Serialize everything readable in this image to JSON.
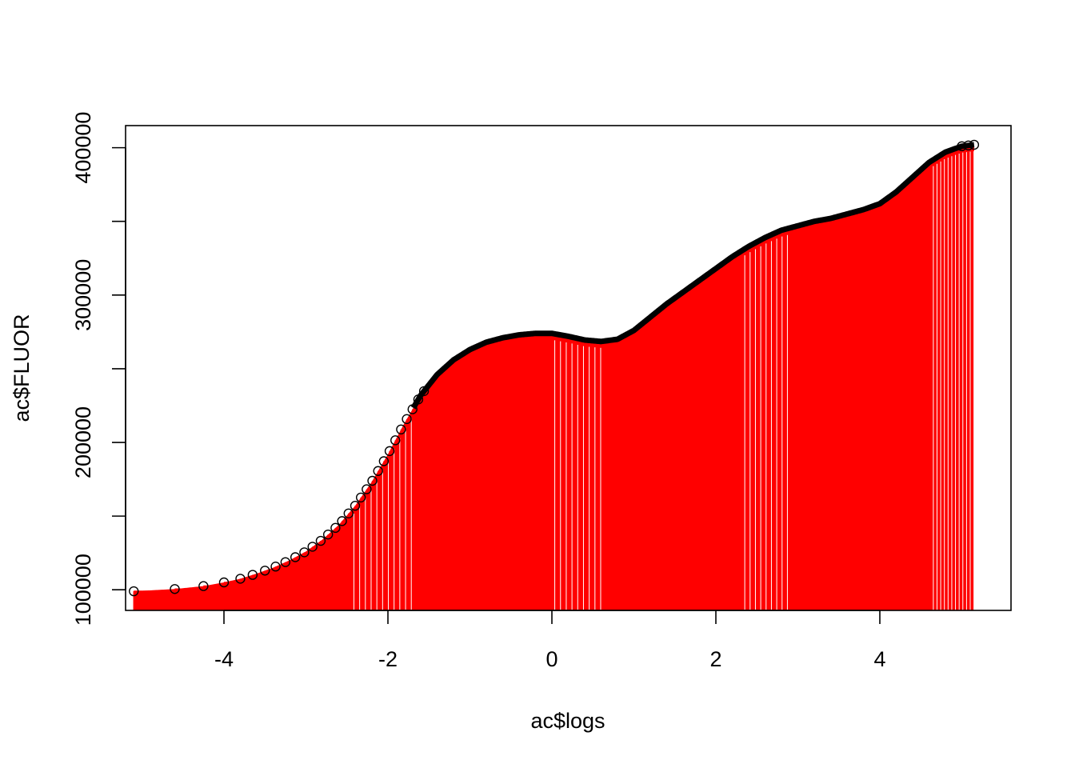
{
  "chart_data": {
    "type": "scatter",
    "style": "points with vertical drop lines (histogram-type) in red, circle markers in black",
    "title": "",
    "xlabel": "ac$logs",
    "ylabel": "ac$FLUOR",
    "xlim": [
      -5.2,
      5.6
    ],
    "ylim": [
      86000,
      415000
    ],
    "x_ticks": [
      -4,
      -2,
      0,
      2,
      4
    ],
    "x_tick_labels": [
      "-4",
      "-2",
      "0",
      "2",
      "4"
    ],
    "y_ticks": [
      100000,
      150000,
      200000,
      250000,
      300000,
      350000,
      400000
    ],
    "y_tick_labels": [
      "100000",
      "",
      "200000",
      "",
      "300000",
      "",
      "400000"
    ],
    "grid": false,
    "legend": "none",
    "colors": {
      "line": "#ff0000",
      "marker": "#000000",
      "background": "#ffffff"
    },
    "curve_points": {
      "x": [
        -5.1,
        -4.6,
        -4.25,
        -4.0,
        -3.8,
        -3.6,
        -3.4,
        -3.2,
        -3.0,
        -2.8,
        -2.6,
        -2.4,
        -2.2,
        -2.0,
        -1.8,
        -1.6,
        -1.4,
        -1.2,
        -1.0,
        -0.8,
        -0.6,
        -0.4,
        -0.2,
        0.0,
        0.2,
        0.4,
        0.6,
        0.8,
        1.0,
        1.2,
        1.4,
        1.6,
        1.8,
        2.0,
        2.2,
        2.4,
        2.6,
        2.8,
        3.0,
        3.2,
        3.4,
        3.6,
        3.8,
        4.0,
        4.2,
        4.4,
        4.6,
        4.8,
        5.0,
        5.15
      ],
      "y": [
        99000,
        100500,
        102500,
        105000,
        107500,
        111000,
        115000,
        120000,
        126000,
        134000,
        144000,
        157000,
        173000,
        192000,
        213000,
        232000,
        246000,
        256000,
        263000,
        268000,
        271000,
        273000,
        274000,
        274000,
        272000,
        269500,
        268500,
        270000,
        276000,
        285000,
        294000,
        302000,
        310000,
        318000,
        326000,
        333000,
        339000,
        344000,
        347000,
        350000,
        352000,
        355000,
        358000,
        362000,
        370000,
        380000,
        390000,
        397000,
        401000,
        402000
      ]
    }
  }
}
